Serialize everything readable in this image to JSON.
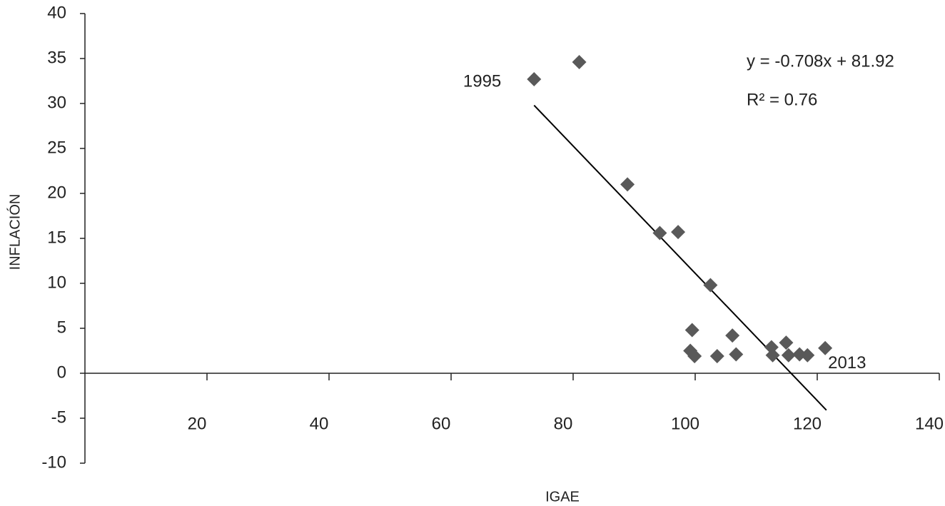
{
  "chart_data": {
    "type": "scatter",
    "x_label": "IGAE",
    "y_label": "INFLACIÓN",
    "x": [
      73.6,
      81.0,
      88.9,
      94.2,
      97.2,
      102.5,
      99.5,
      99.2,
      99.9,
      103.6,
      106.1,
      106.7,
      112.5,
      112.7,
      114.9,
      115.3,
      117.1,
      118.4,
      121.3
    ],
    "series": [
      {
        "color": "#595959",
        "values": [
          32.7,
          34.6,
          21.0,
          15.6,
          15.7,
          9.8,
          4.8,
          2.5,
          1.9,
          1.9,
          4.2,
          2.1,
          2.9,
          2.0,
          3.4,
          2.0,
          2.1,
          2.0,
          2.8
        ]
      }
    ],
    "annotations": [
      "1995",
      "2013"
    ],
    "trendline": {
      "x": [
        73.6,
        121.5
      ],
      "y": [
        29.8,
        -4.1
      ],
      "color": "#000000",
      "equation": "y = -0.708x + 81.92",
      "r2": "R² = 0.76"
    },
    "xlim": [
      0,
      140
    ],
    "xticks": [
      20,
      40,
      60,
      80,
      100,
      120,
      140
    ],
    "ylim": [
      -10,
      40
    ],
    "yticks": [
      -10,
      -5,
      0,
      5,
      10,
      15,
      20,
      25,
      30,
      35,
      40
    ],
    "grid": false
  }
}
